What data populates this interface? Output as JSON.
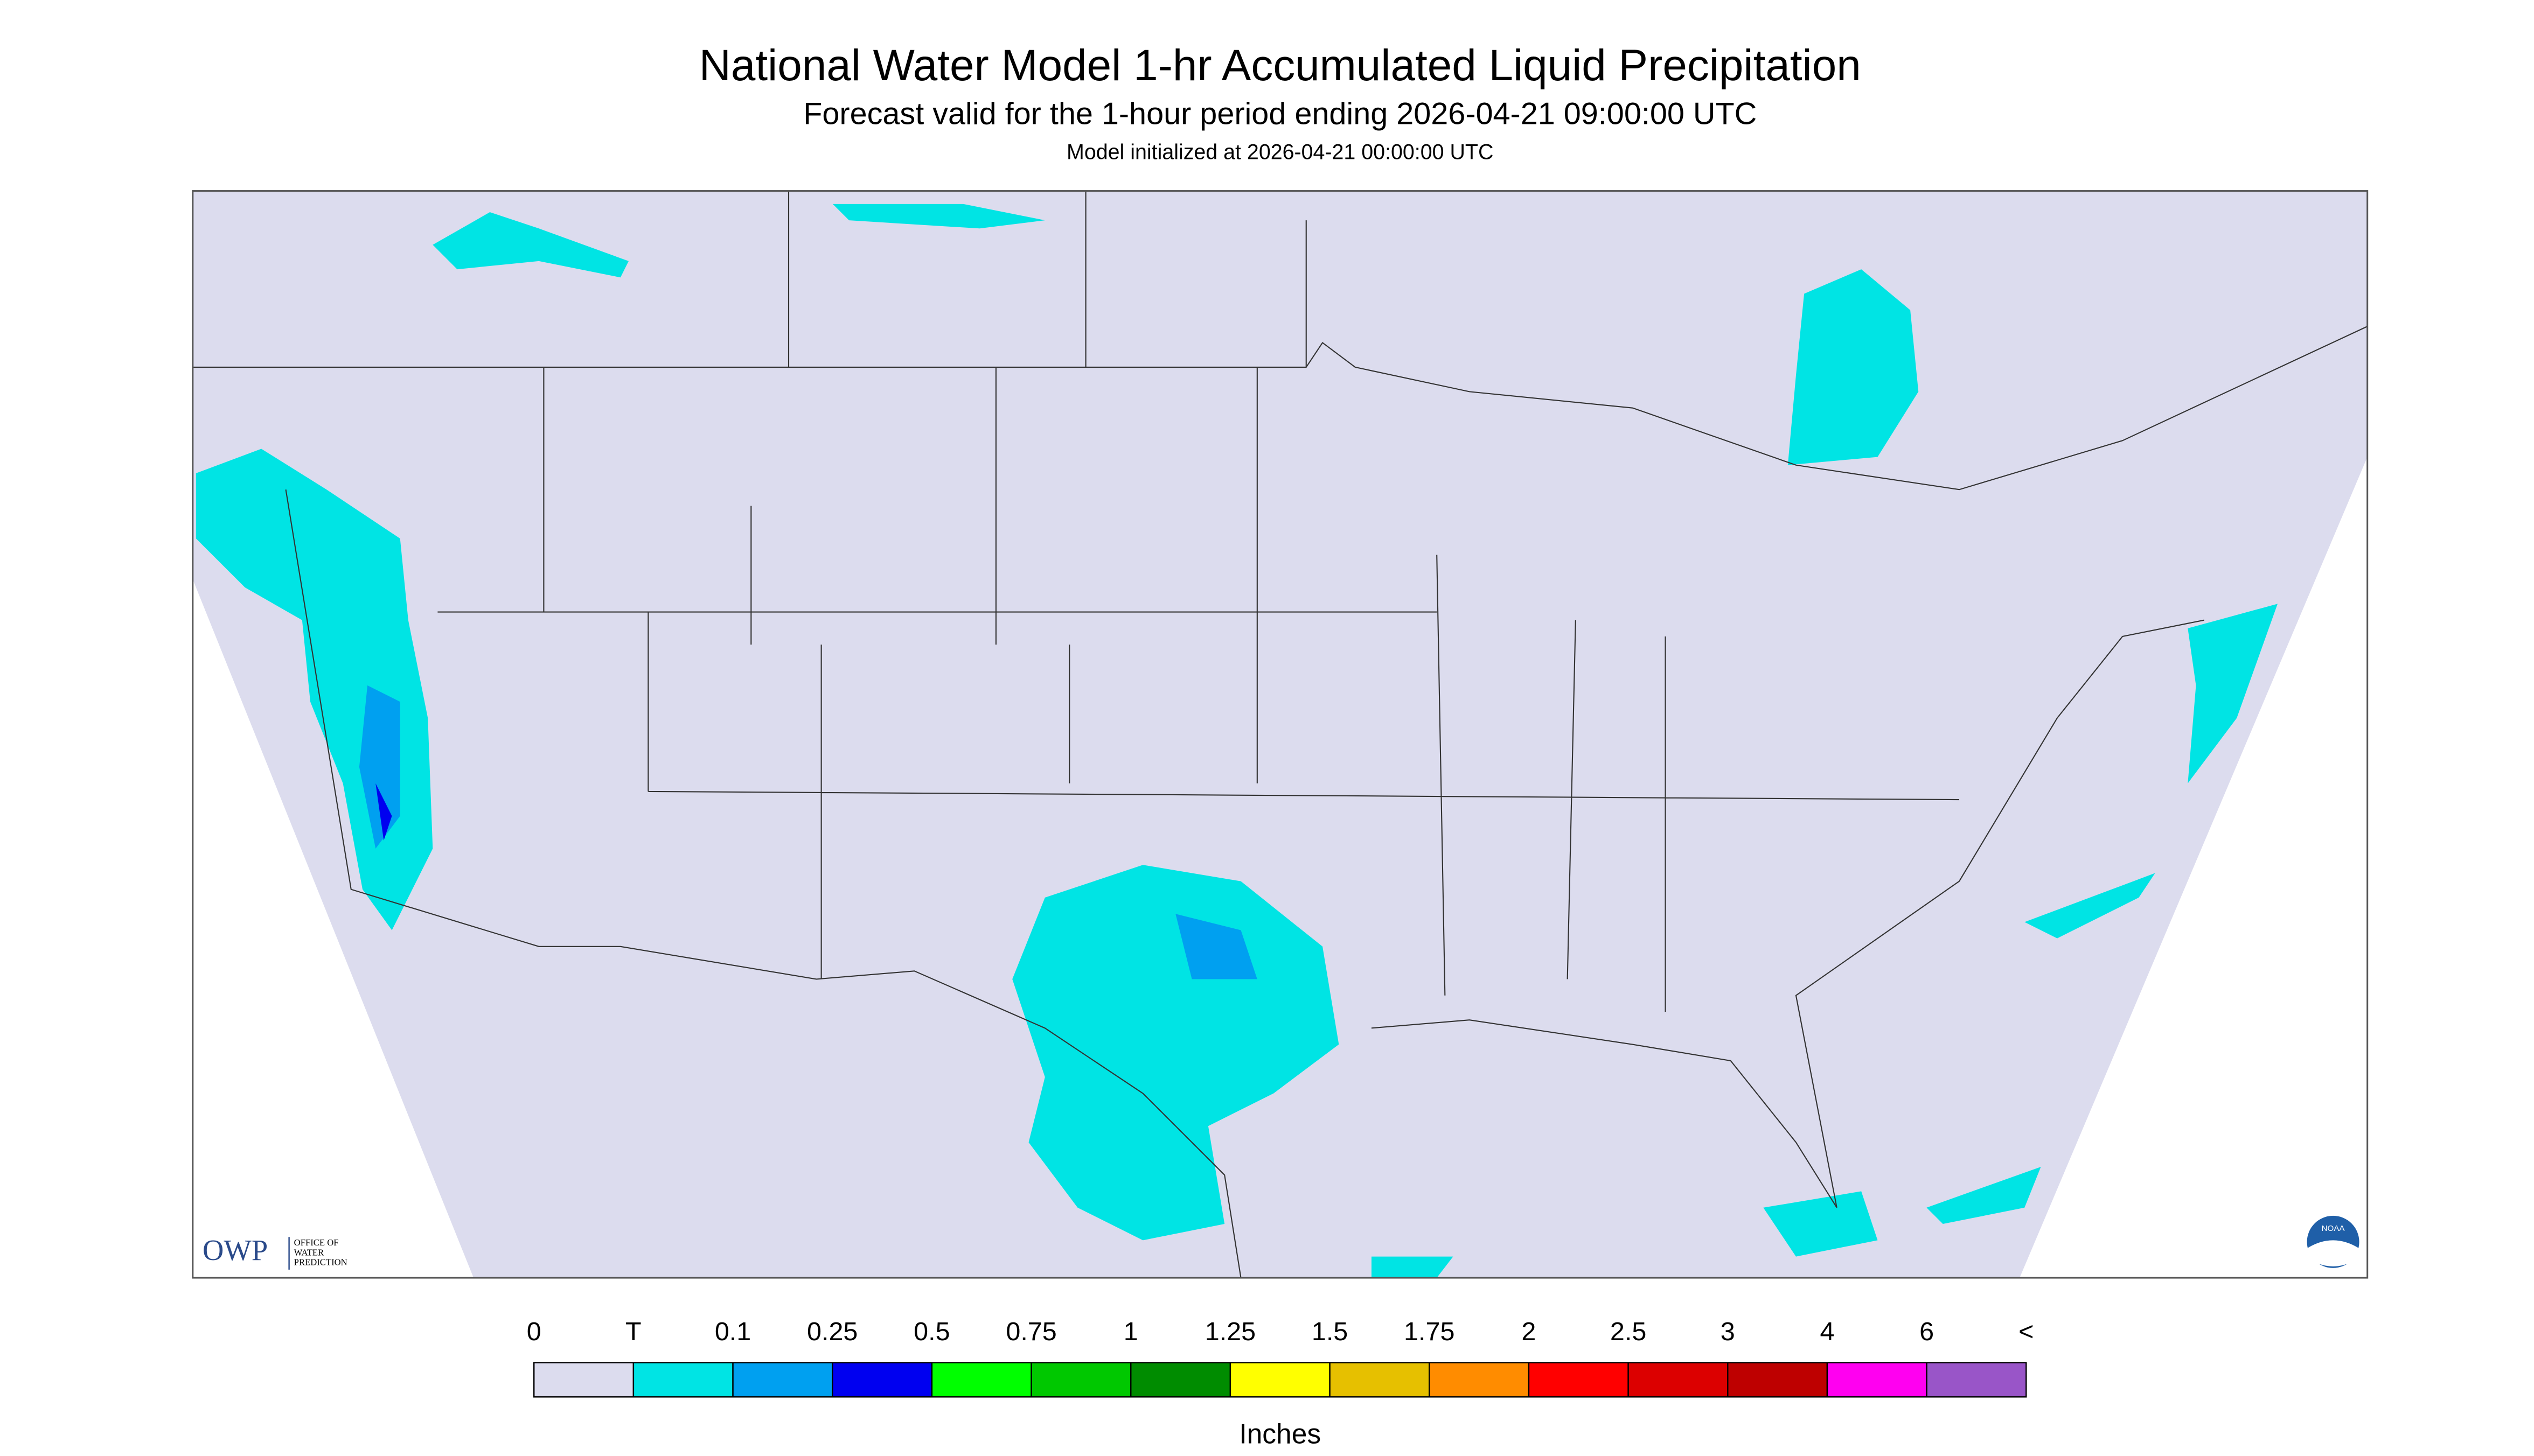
{
  "header": {
    "title": "National Water Model 1-hr Accumulated Liquid Precipitation",
    "subtitle": "Forecast valid for the 1-hour period ending 2026-04-21 09:00:00 UTC",
    "note": "Model initialized at 2026-04-21 00:00:00 UTC"
  },
  "legend": {
    "labels": [
      "0",
      "T",
      "0.1",
      "0.25",
      "0.5",
      "0.75",
      "1",
      "1.25",
      "1.5",
      "1.75",
      "2",
      "2.5",
      "3",
      "4",
      "6",
      "<"
    ],
    "colors": [
      "#dcdcee",
      "#00e4e4",
      "#00a0f0",
      "#0000f0",
      "#00ff00",
      "#00c800",
      "#008c00",
      "#ffff00",
      "#e6c000",
      "#ff8c00",
      "#ff0000",
      "#dc0000",
      "#be0000",
      "#ff00f0",
      "#9955c8"
    ],
    "unit": "Inches"
  },
  "logo": {
    "abbr": "OWP",
    "lines": [
      "OFFICE OF",
      "WATER",
      "PREDICTION"
    ]
  },
  "badge": "NOAA"
}
